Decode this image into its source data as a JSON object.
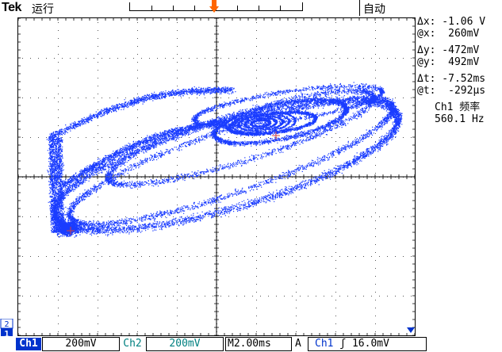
{
  "header": {
    "brand": "Tek",
    "run_state": "运行",
    "trigger_mode": "自动"
  },
  "trigger_marker": "T",
  "channel_marker": "1",
  "channel_marker_top": "2",
  "readouts": {
    "delta_x": "Δx: -1.06 V",
    "at_x": "@x:  260mV",
    "delta_y": "Δy: -472mV",
    "at_y": "@y:  492mV",
    "delta_t": "Δt: -7.52ms",
    "at_t": "@t:  -292µs",
    "freq_title": "Ch1 频率",
    "freq_value": "560.1 Hz"
  },
  "bottom": {
    "ch1_label": "Ch1",
    "ch1_scale": "200mV",
    "ch2_label": "Ch2",
    "ch2_scale": "200mV",
    "timebase_prefix": "M",
    "timebase": "2.00ms",
    "trigger_prefix": "A",
    "trigger_source": "Ch1",
    "trigger_slope": "ʃ",
    "trigger_level": "16.0mV"
  },
  "colors": {
    "trace": "#1a3cff",
    "ch1_tag": "#0033cc",
    "ch2": "#008080",
    "trigger_marker": "#ff6600",
    "cursor": "#d04040"
  }
}
